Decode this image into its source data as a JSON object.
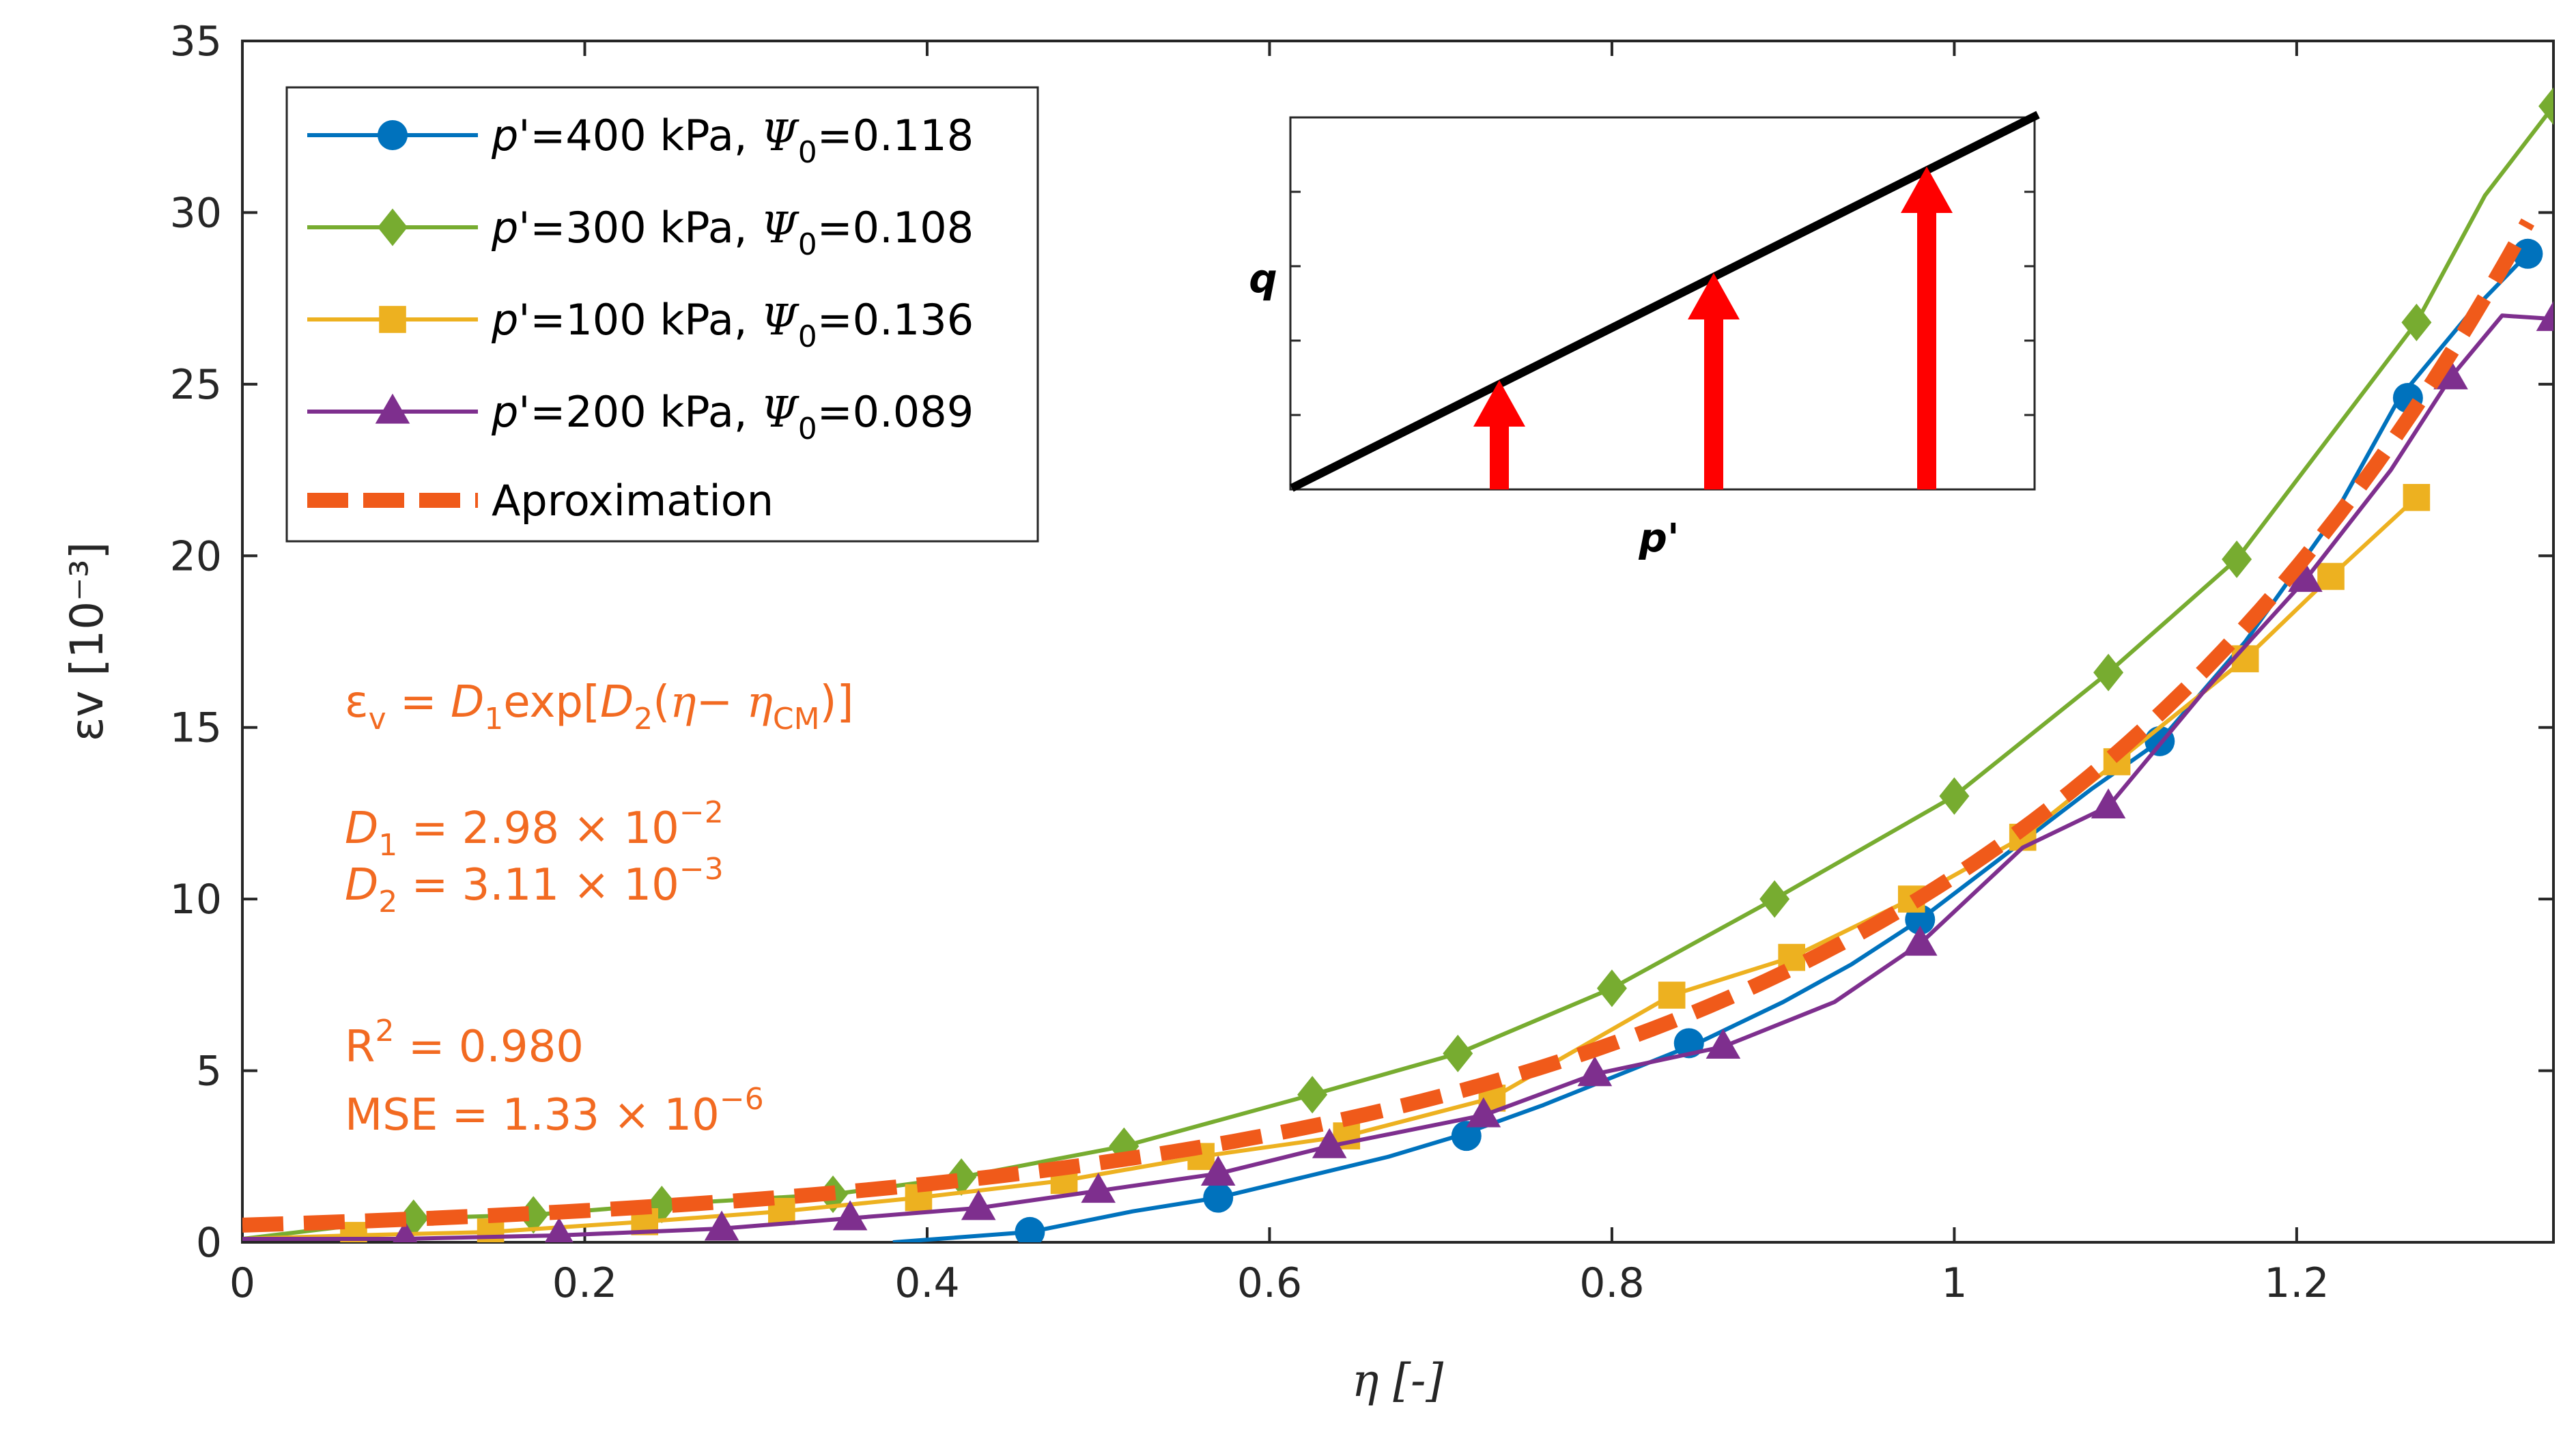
{
  "chart_data": {
    "type": "line",
    "xlabel": "η [-]",
    "ylabel": "εv [10⁻³]",
    "xlim": [
      0,
      1.35
    ],
    "ylim": [
      0,
      35
    ],
    "x_ticks": [
      "0",
      "0.2",
      "0.4",
      "0.6",
      "0.8",
      "1",
      "1.2"
    ],
    "y_ticks": [
      "0",
      "5",
      "10",
      "15",
      "20",
      "25",
      "30",
      "35"
    ],
    "legend_position": "top-left",
    "series": [
      {
        "name": "p'=400 kPa, Ψ0=0.118",
        "label_parts": {
          "p": "p",
          "p_rest": "'=400 kPa, ",
          "psi": "Ψ",
          "sub": "0",
          "val": "=0.118"
        },
        "color": "#0072BD",
        "marker": "circle",
        "x": [
          0.38,
          0.46,
          0.52,
          0.57,
          0.62,
          0.67,
          0.71,
          0.76,
          0.8,
          0.85,
          0.9,
          0.94,
          0.98,
          1.03,
          1.08,
          1.12,
          1.17,
          1.22,
          1.26,
          1.3,
          1.335
        ],
        "y": [
          0,
          0.3,
          0.9,
          1.3,
          1.9,
          2.5,
          3.1,
          4.0,
          4.8,
          5.8,
          7.0,
          8.1,
          9.4,
          11.3,
          13.2,
          14.6,
          17.5,
          21.0,
          24.6,
          27.0,
          28.8
        ],
        "marker_x": [
          0.46,
          0.57,
          0.715,
          0.845,
          0.98,
          1.12,
          1.265,
          1.335
        ],
        "marker_y": [
          0.3,
          1.3,
          3.1,
          5.8,
          9.4,
          14.6,
          24.6,
          28.8
        ]
      },
      {
        "name": "p'=300 kPa, Ψ0=0.108",
        "label_parts": {
          "p": "p",
          "p_rest": "'=300 kPa, ",
          "psi": "Ψ",
          "sub": "0",
          "val": "=0.108"
        },
        "color": "#77AC30",
        "marker": "diamond",
        "x": [
          0,
          0.1,
          0.17,
          0.245,
          0.345,
          0.42,
          0.515,
          0.625,
          0.71,
          0.8,
          0.895,
          1.0,
          1.09,
          1.165,
          1.27,
          1.31,
          1.35
        ],
        "y": [
          0.1,
          0.7,
          0.8,
          1.1,
          1.4,
          1.9,
          2.8,
          4.3,
          5.5,
          7.4,
          10.0,
          13.0,
          16.6,
          19.9,
          26.8,
          30.5,
          33.1
        ],
        "marker_x": [
          0.1,
          0.17,
          0.245,
          0.345,
          0.42,
          0.515,
          0.625,
          0.71,
          0.8,
          0.895,
          1.0,
          1.09,
          1.165,
          1.27,
          1.35
        ],
        "marker_y": [
          0.7,
          0.8,
          1.1,
          1.4,
          1.9,
          2.8,
          4.3,
          5.5,
          7.4,
          10.0,
          13.0,
          16.6,
          19.9,
          26.8,
          33.1
        ]
      },
      {
        "name": "p'=100 kPa, Ψ0=0.136",
        "label_parts": {
          "p": "p",
          "p_rest": "'=100 kPa, ",
          "psi": "Ψ",
          "sub": "0",
          "val": "=0.136"
        },
        "color": "#EDB120",
        "marker": "square",
        "x": [
          0,
          0.065,
          0.145,
          0.235,
          0.315,
          0.395,
          0.48,
          0.56,
          0.645,
          0.73,
          0.835,
          0.905,
          0.975,
          1.04,
          1.095,
          1.17,
          1.22,
          1.27
        ],
        "y": [
          0.1,
          0.2,
          0.3,
          0.6,
          0.9,
          1.3,
          1.8,
          2.5,
          3.1,
          4.2,
          7.2,
          8.3,
          10.0,
          11.8,
          14.0,
          17.0,
          19.4,
          21.7
        ],
        "marker_x": [
          0.065,
          0.145,
          0.235,
          0.315,
          0.395,
          0.48,
          0.56,
          0.645,
          0.73,
          0.835,
          0.905,
          0.975,
          1.04,
          1.095,
          1.17,
          1.22,
          1.27
        ],
        "marker_y": [
          0.2,
          0.3,
          0.6,
          0.9,
          1.3,
          1.8,
          2.5,
          3.1,
          4.2,
          7.2,
          8.3,
          10.0,
          11.8,
          14.0,
          17.0,
          19.4,
          21.7
        ]
      },
      {
        "name": "p'=200 kPa, Ψ0=0.089",
        "label_parts": {
          "p": "p",
          "p_rest": "'=200 kPa, ",
          "psi": "Ψ",
          "sub": "0",
          "val": "=0.089"
        },
        "color": "#7E2F8E",
        "marker": "triangle",
        "x": [
          0,
          0.095,
          0.185,
          0.28,
          0.355,
          0.43,
          0.5,
          0.57,
          0.635,
          0.725,
          0.79,
          0.865,
          0.93,
          0.98,
          1.04,
          1.09,
          1.145,
          1.205,
          1.255,
          1.29,
          1.32,
          1.35
        ],
        "y": [
          0.1,
          0.1,
          0.2,
          0.4,
          0.7,
          1.0,
          1.5,
          2.0,
          2.8,
          3.7,
          4.9,
          5.7,
          7.0,
          8.7,
          11.5,
          12.7,
          16.0,
          19.3,
          22.5,
          25.2,
          27.0,
          26.9
        ],
        "marker_x": [
          0.095,
          0.185,
          0.28,
          0.355,
          0.43,
          0.5,
          0.57,
          0.635,
          0.725,
          0.79,
          0.865,
          0.98,
          1.09,
          1.205,
          1.29,
          1.35
        ],
        "marker_y": [
          0.1,
          0.2,
          0.4,
          0.7,
          1.0,
          1.5,
          2.0,
          2.8,
          3.7,
          4.9,
          5.7,
          8.7,
          12.7,
          19.3,
          25.2,
          26.9
        ]
      },
      {
        "name": "Aproximation",
        "label_parts": {
          "text": "Aproximation"
        },
        "color": "#F05A1A",
        "style": "dashed",
        "function": "exp",
        "a": 0.5,
        "b": 3.06,
        "x_range": [
          0,
          1.335
        ]
      }
    ],
    "annotations": {
      "color": "#F26A21",
      "eq": {
        "eps": "ε",
        "eps_sub": "v",
        "mid1": " = ",
        "D": "D",
        "D_sub": "1",
        "exp": "exp[",
        "D2": "D",
        "D2_sub": "2",
        "paren": "(",
        "eta": "η",
        "minus": "− ",
        "eta2": "η",
        "eta_sub": "CM",
        "close": ")]"
      },
      "d1": {
        "D": "D",
        "sub": "1",
        "val": " = 2.98 × 10",
        "sup": "−2"
      },
      "d2": {
        "D": "D",
        "sub": "2",
        "val": " = 3.11 × 10",
        "sup": "−3"
      },
      "r2": {
        "R": "R",
        "sup": "2",
        "val": " = 0.980"
      },
      "mse": {
        "text": "MSE = 1.33 × 10",
        "sup": "−6"
      }
    },
    "inset": {
      "xlabel": "p'",
      "ylabel": "q",
      "line_color": "#000000",
      "arrow_color": "#FF0000",
      "arrow_count": 3
    }
  }
}
